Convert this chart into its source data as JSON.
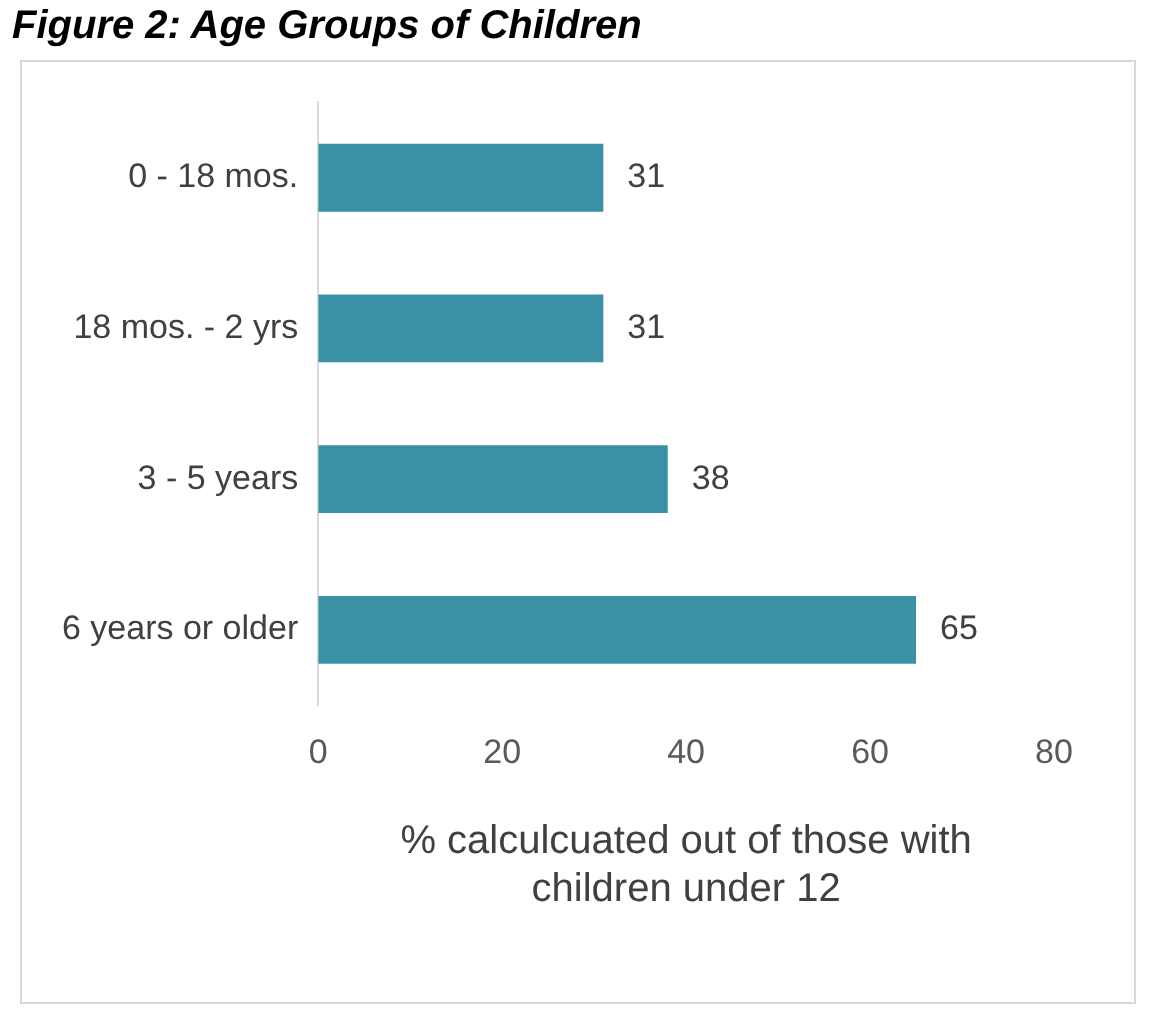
{
  "chart_data": {
    "type": "bar",
    "orientation": "horizontal",
    "title": "Figure 2: Age Groups of Children",
    "xlabel": "% calculcuated out of those with children under 12",
    "categories": [
      "0 - 18 mos.",
      "18 mos. - 2 yrs",
      "3 - 5 years",
      "6 years or older"
    ],
    "values": [
      31,
      31,
      38,
      65
    ],
    "color": "#3a91a6",
    "xlim": [
      0,
      80
    ],
    "xticks": [
      0,
      20,
      40,
      60,
      80
    ],
    "grid": false,
    "data_labels": true
  }
}
